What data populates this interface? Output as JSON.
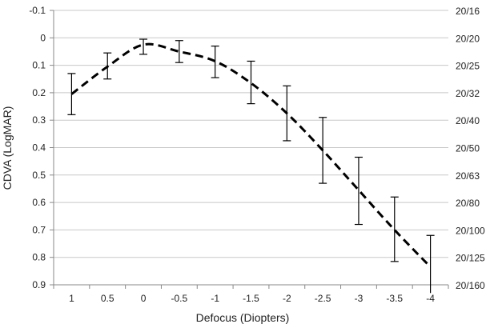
{
  "chart_data": {
    "type": "line",
    "title": "",
    "xlabel": "Defocus (Diopters)",
    "ylabel": "CDVA (LogMAR)",
    "categories": [
      "1",
      "0.5",
      "0",
      "-0.5",
      "-1",
      "-1.5",
      "-2",
      "-2.5",
      "-3",
      "-3.5",
      "-4"
    ],
    "ylim": [
      -0.1,
      0.9
    ],
    "y_inverted": true,
    "yticks": [
      "-0.1",
      "0",
      "0.1",
      "0.2",
      "0.3",
      "0.4",
      "0.5",
      "0.6",
      "0.7",
      "0.8",
      "0.9"
    ],
    "y2ticks": [
      {
        "label": "20/16",
        "logmar": -0.1
      },
      {
        "label": "20/20",
        "logmar": 0.0
      },
      {
        "label": "20/25",
        "logmar": 0.1
      },
      {
        "label": "20/32",
        "logmar": 0.2
      },
      {
        "label": "20/40",
        "logmar": 0.3
      },
      {
        "label": "20/50",
        "logmar": 0.4
      },
      {
        "label": "20/63",
        "logmar": 0.5
      },
      {
        "label": "20/80",
        "logmar": 0.6
      },
      {
        "label": "20/100",
        "logmar": 0.7
      },
      {
        "label": "20/125",
        "logmar": 0.8
      },
      {
        "label": "20/160",
        "logmar": 0.9
      }
    ],
    "grid": true,
    "series": [
      {
        "values": [
          0.205,
          0.105,
          0.025,
          0.05,
          0.085,
          0.165,
          0.275,
          0.41,
          0.555,
          0.7,
          0.835
        ],
        "error_lower": [
          0.13,
          0.055,
          0.005,
          0.01,
          0.03,
          0.085,
          0.175,
          0.29,
          0.435,
          0.58,
          0.72
        ],
        "error_upper": [
          0.28,
          0.15,
          0.06,
          0.09,
          0.145,
          0.24,
          0.375,
          0.53,
          0.68,
          0.815,
          0.95
        ],
        "color": "#000000",
        "line_style": "dashed"
      }
    ]
  }
}
